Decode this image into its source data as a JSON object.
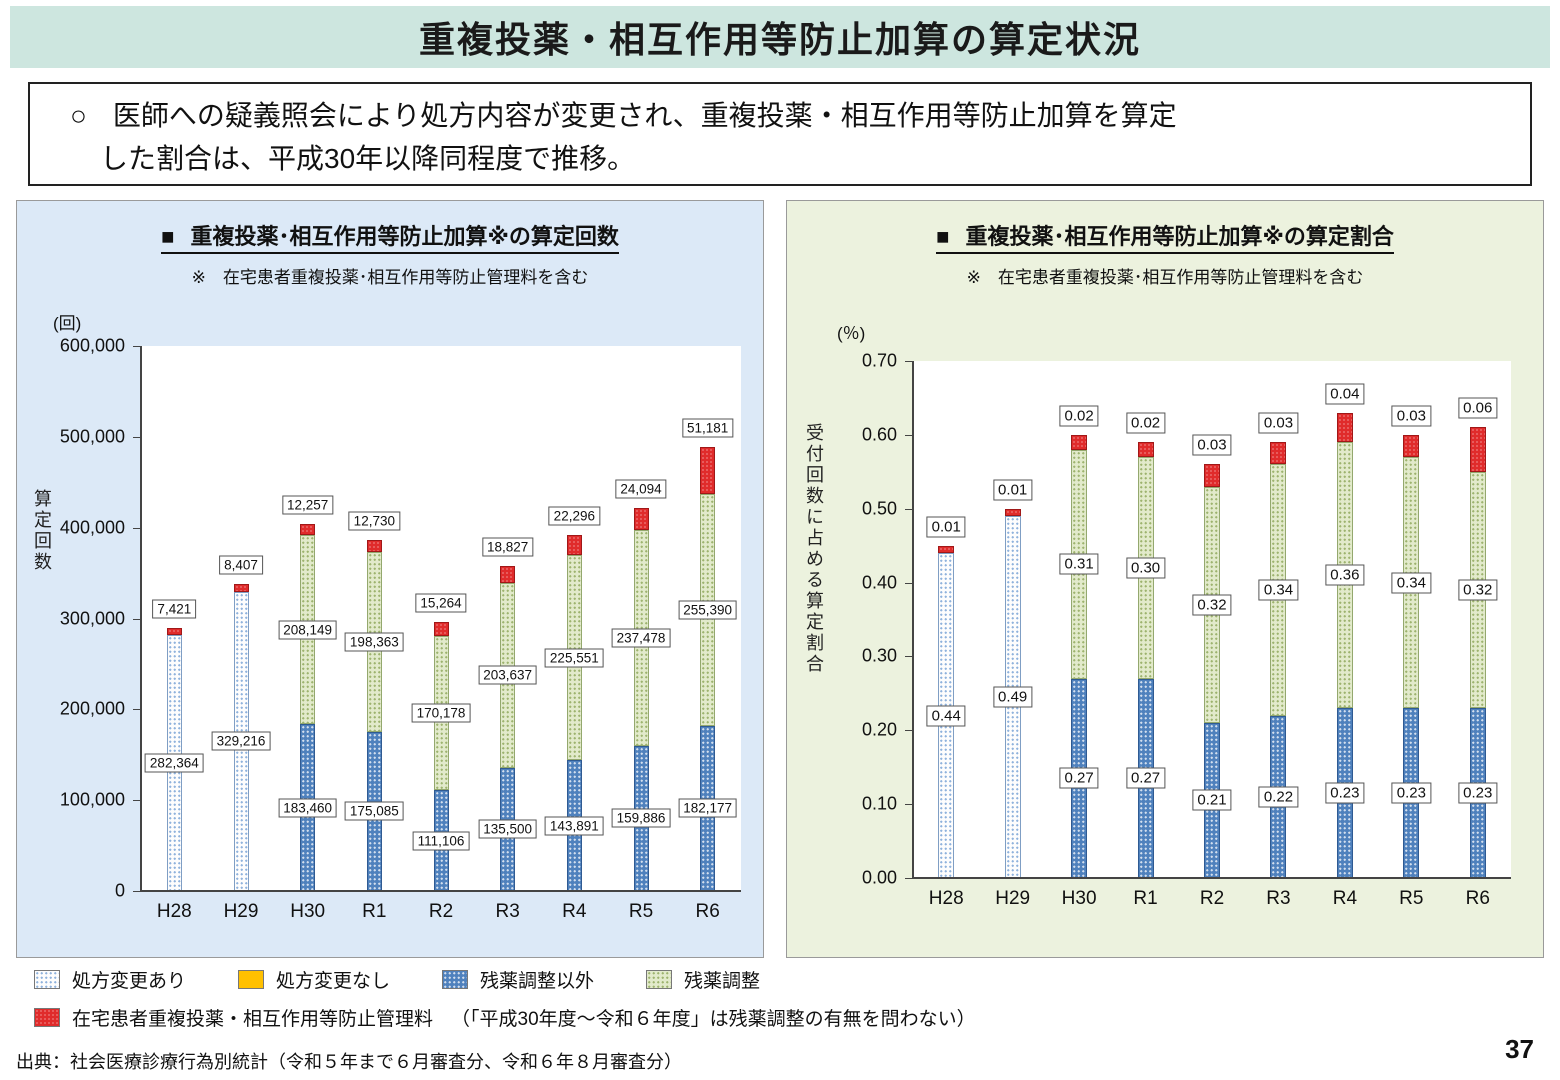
{
  "page": {
    "title": "重複投薬・相互作用等防止加算の算定状況",
    "page_number": "37",
    "source": "出典：社会医療診療行為別統計（令和５年まで６月審査分、令和６年８月審査分）"
  },
  "summary": {
    "marker": "○",
    "lines": [
      "医師への疑義照会により処方内容が変更され、重複投薬・相互作用等防止加算を算定",
      "した割合は、平成30年以降同程度で推移。"
    ]
  },
  "legend": {
    "items": [
      {
        "key": "dotted",
        "label": "処方変更あり"
      },
      {
        "key": "yellow",
        "label": "処方変更なし"
      },
      {
        "key": "blue",
        "label": "残薬調整以外"
      },
      {
        "key": "green",
        "label": "残薬調整"
      }
    ],
    "extra": {
      "key": "red",
      "label": "在宅患者重複投薬・相互作用等防止管理料",
      "note": "（「平成30年度～令和６年度」は残薬調整の有無を問わない）"
    }
  },
  "colors": {
    "title_bar_bg": "#cde6df",
    "count_panel_bg": "#dce9f7",
    "ratio_panel_bg": "#ecf2de",
    "series_dotted": "#fdfdfd",
    "series_blue": "#4f81bd",
    "series_green": "#e2eacb",
    "series_red": "#e02b2b",
    "series_yellow": "#ffc000"
  },
  "chart_data": [
    {
      "id": "santei-kaisu",
      "type": "stacked-bar",
      "title_bullet": "■",
      "title": "重複投薬･相互作用等防止加算※の算定回数",
      "note": "※　在宅患者重複投薬･相互作用等防止管理料を含む",
      "unit_label": "(回)",
      "yaxis_label": "算定回数",
      "categories": [
        "H28",
        "H29",
        "H30",
        "R1",
        "R2",
        "R3",
        "R4",
        "R5",
        "R6"
      ],
      "ylim": [
        0,
        600000
      ],
      "ytick_labels": [
        "0",
        "100,000",
        "200,000",
        "300,000",
        "400,000",
        "500,000",
        "600,000"
      ],
      "grid": false,
      "legend_position": "shared-bottom",
      "label_format": "thousands",
      "series": [
        {
          "key": "dotted",
          "name": "処方変更あり",
          "values": [
            282364,
            329216,
            null,
            null,
            null,
            null,
            null,
            null,
            null
          ]
        },
        {
          "key": "blue",
          "name": "残薬調整以外",
          "values": [
            null,
            null,
            183460,
            175085,
            111106,
            135500,
            143891,
            159886,
            182177
          ]
        },
        {
          "key": "green",
          "name": "残薬調整",
          "values": [
            null,
            null,
            208149,
            198363,
            170178,
            203637,
            225551,
            237478,
            255390
          ]
        },
        {
          "key": "red",
          "name": "在宅患者重複投薬・相互作用等防止管理料",
          "values": [
            7421,
            8407,
            12257,
            12730,
            15264,
            18827,
            22296,
            24094,
            51181
          ]
        }
      ]
    },
    {
      "id": "santei-wariai",
      "type": "stacked-bar",
      "title_bullet": "■",
      "title": "重複投薬･相互作用等防止加算※の算定割合",
      "note": "※　在宅患者重複投薬･相互作用等防止管理料を含む",
      "unit_label": "(％)",
      "yaxis_label": "受付回数に占める算定割合",
      "categories": [
        "H28",
        "H29",
        "H30",
        "R1",
        "R2",
        "R3",
        "R4",
        "R5",
        "R6"
      ],
      "ylim": [
        0,
        0.7
      ],
      "ytick_labels": [
        "0.00",
        "0.10",
        "0.20",
        "0.30",
        "0.40",
        "0.50",
        "0.60",
        "0.70"
      ],
      "grid": false,
      "legend_position": "shared-bottom",
      "label_format": "2dp",
      "series": [
        {
          "key": "dotted",
          "name": "処方変更あり",
          "values": [
            0.44,
            0.49,
            null,
            null,
            null,
            null,
            null,
            null,
            null
          ]
        },
        {
          "key": "blue",
          "name": "残薬調整以外",
          "values": [
            null,
            null,
            0.27,
            0.27,
            0.21,
            0.22,
            0.23,
            0.23,
            0.23
          ]
        },
        {
          "key": "green",
          "name": "残薬調整",
          "values": [
            null,
            null,
            0.31,
            0.3,
            0.32,
            0.34,
            0.36,
            0.34,
            0.32
          ]
        },
        {
          "key": "red",
          "name": "在宅患者重複投薬・相互作用等防止管理料",
          "values": [
            0.01,
            0.01,
            0.02,
            0.02,
            0.03,
            0.03,
            0.04,
            0.03,
            0.06
          ]
        }
      ]
    }
  ]
}
